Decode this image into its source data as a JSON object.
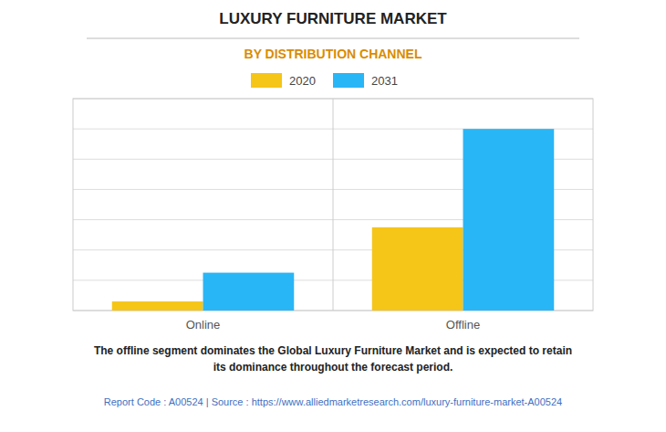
{
  "chart_data": {
    "type": "bar",
    "title": "LUXURY FURNITURE MARKET",
    "subtitle": "BY DISTRIBUTION CHANNEL",
    "categories": [
      "Online",
      "Offline"
    ],
    "series": [
      {
        "name": "2020",
        "color": "#F5C518",
        "values": [
          0.6,
          5.5
        ]
      },
      {
        "name": "2031",
        "color": "#29B6F6",
        "values": [
          2.5,
          12.0
        ]
      }
    ],
    "ylim": [
      0,
      14
    ],
    "yticks": [
      0,
      2,
      4,
      6,
      8,
      10,
      12,
      14
    ],
    "grid": true,
    "tick_labels": "x",
    "legend": "top",
    "annotations": [
      "The offline segment dominates the Global Luxury Furniture Market and is expected to retain\nits dominance throughout the forecast period.",
      "Report Code : A00524  |  Source : https://www.alliedmarketresearch.com/luxury-furniture-market-A00524"
    ]
  }
}
